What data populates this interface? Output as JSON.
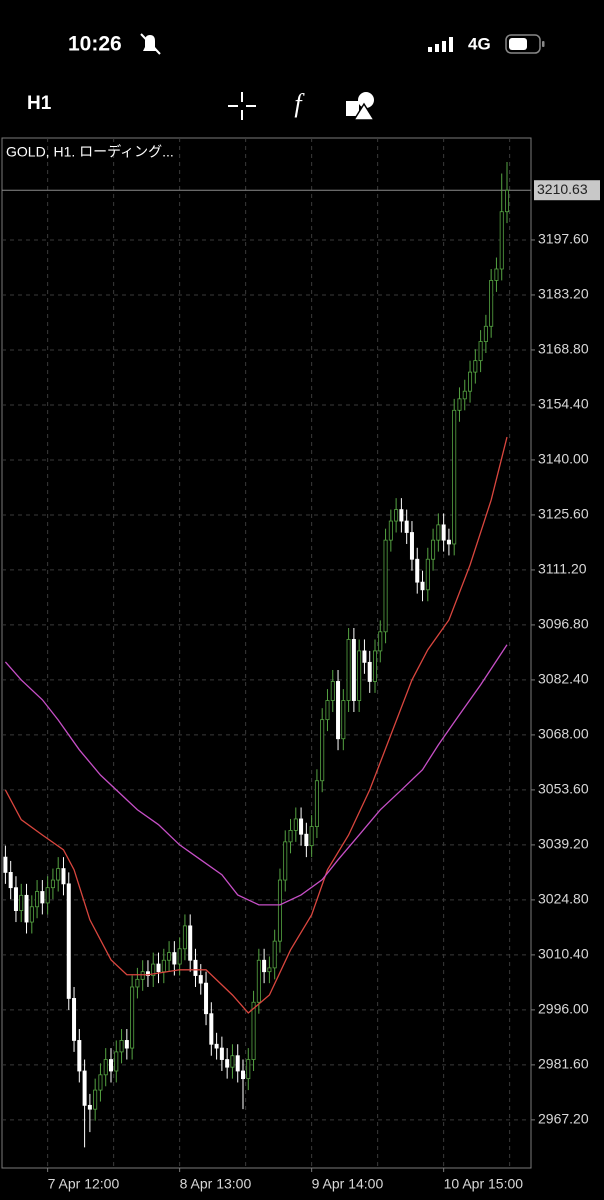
{
  "status_bar": {
    "time": "10:26",
    "network": "4G"
  },
  "toolbar": {
    "timeframe": "H1"
  },
  "chart_data": {
    "type": "candlestick",
    "title": "GOLD, H1. ローディング...",
    "categories": [
      null,
      null,
      null,
      null,
      null,
      null,
      null,
      null,
      "7 Apr 12:00",
      null,
      null,
      null,
      null,
      null,
      null,
      null,
      null,
      null,
      null,
      null,
      null,
      null,
      null,
      null,
      null,
      null,
      null,
      null,
      null,
      null,
      null,
      null,
      null,
      "8 Apr 13:00",
      null,
      null,
      null,
      null,
      null,
      null,
      null,
      null,
      null,
      null,
      null,
      null,
      null,
      null,
      null,
      null,
      null,
      null,
      null,
      null,
      null,
      null,
      null,
      null,
      "9 Apr 14:00",
      null,
      null,
      null,
      null,
      null,
      null,
      null,
      null,
      null,
      null,
      null,
      null,
      null,
      null,
      null,
      null,
      null,
      null,
      null,
      null,
      null,
      null,
      null,
      null,
      "10 Apr 15:00",
      null,
      null,
      null,
      null,
      null,
      null,
      null,
      null,
      null,
      null,
      null,
      null
    ],
    "open": [
      3036,
      3032,
      3028,
      3022,
      3026,
      3019,
      3023,
      3027,
      3024,
      3028,
      3030,
      3033,
      3029,
      2999,
      2988,
      2980,
      2971,
      2970,
      2975,
      2979,
      2983,
      2980,
      2985,
      2988,
      2986,
      3002,
      3004,
      3006,
      3005,
      3008,
      3006,
      3009,
      3011,
      3008,
      3012,
      3018,
      3009,
      3005,
      3003,
      2995,
      2987,
      2986,
      2983,
      2981,
      2984,
      2980,
      2978,
      2983,
      2998,
      3009,
      3006,
      3007,
      3014,
      3030,
      3040,
      3043,
      3046,
      3042,
      3039,
      3044,
      3056,
      3072,
      3077,
      3082,
      3067,
      3077,
      3093,
      3077,
      3090,
      3087,
      3082,
      3090,
      3095,
      3119,
      3124,
      3127,
      3124,
      3121,
      3114,
      3108,
      3106,
      3114,
      3119,
      3123,
      3119,
      3118,
      3153,
      3156,
      3158,
      3163,
      3166,
      3171,
      3175,
      3187,
      3190,
      3205
    ],
    "high": [
      3039,
      3035,
      3031,
      3029,
      3029,
      3026,
      3030,
      3030,
      3031,
      3033,
      3036,
      3036,
      3032,
      3002,
      2991,
      2983,
      2974,
      2978,
      2982,
      2986,
      2986,
      2988,
      2991,
      2991,
      3005,
      3007,
      3009,
      3009,
      3011,
      3011,
      3012,
      3014,
      3014,
      3015,
      3021,
      3021,
      3012,
      3008,
      3006,
      2998,
      2990,
      2989,
      2986,
      2987,
      2987,
      2983,
      2986,
      3001,
      3012,
      3012,
      3010,
      3017,
      3033,
      3043,
      3046,
      3049,
      3049,
      3045,
      3047,
      3059,
      3075,
      3080,
      3085,
      3085,
      3080,
      3096,
      3096,
      3093,
      3093,
      3090,
      3093,
      3098,
      3122,
      3127,
      3130,
      3130,
      3127,
      3124,
      3117,
      3111,
      3117,
      3122,
      3126,
      3126,
      3122,
      3156,
      3159,
      3161,
      3166,
      3169,
      3174,
      3178,
      3190,
      3193,
      3215,
      3218
    ],
    "low": [
      3029,
      3025,
      3019,
      3019,
      3016,
      3016,
      3020,
      3021,
      3021,
      3025,
      3027,
      3026,
      2996,
      2985,
      2977,
      2960,
      2964,
      2967,
      2972,
      2976,
      2977,
      2977,
      2982,
      2983,
      2983,
      2999,
      3001,
      3002,
      3002,
      3003,
      3003,
      3006,
      3005,
      3005,
      3009,
      3006,
      3002,
      3000,
      2992,
      2984,
      2983,
      2980,
      2978,
      2978,
      2977,
      2970,
      2975,
      2980,
      2995,
      3003,
      3003,
      3004,
      3011,
      3027,
      3037,
      3040,
      3039,
      3036,
      3036,
      3041,
      3053,
      3069,
      3074,
      3064,
      3064,
      3074,
      3074,
      3074,
      3084,
      3079,
      3079,
      3087,
      3092,
      3116,
      3121,
      3121,
      3118,
      3111,
      3105,
      3103,
      3103,
      3111,
      3116,
      3116,
      3115,
      3115,
      3150,
      3153,
      3155,
      3160,
      3163,
      3168,
      3172,
      3184,
      3187,
      3202
    ],
    "close": [
      3032,
      3028,
      3022,
      3026,
      3019,
      3023,
      3027,
      3024,
      3028,
      3030,
      3033,
      3029,
      2999,
      2988,
      2980,
      2971,
      2970,
      2975,
      2979,
      2983,
      2980,
      2985,
      2988,
      2986,
      3002,
      3004,
      3006,
      3005,
      3008,
      3006,
      3009,
      3011,
      3008,
      3012,
      3018,
      3009,
      3005,
      3003,
      2995,
      2987,
      2986,
      2983,
      2981,
      2984,
      2980,
      2978,
      2983,
      2998,
      3009,
      3006,
      3007,
      3014,
      3030,
      3040,
      3043,
      3046,
      3042,
      3039,
      3044,
      3056,
      3072,
      3077,
      3082,
      3067,
      3077,
      3093,
      3077,
      3090,
      3087,
      3082,
      3090,
      3095,
      3119,
      3124,
      3127,
      3124,
      3121,
      3114,
      3108,
      3106,
      3114,
      3119,
      3123,
      3119,
      3118,
      3153,
      3156,
      3158,
      3163,
      3166,
      3171,
      3175,
      3187,
      3190,
      3205,
      3210.63
    ],
    "up_color": "#56a443",
    "down_color": "#ffffff",
    "lines": [
      {
        "color": "#d9463e",
        "x": [
          0,
          3,
          7,
          11,
          13,
          16,
          20,
          23,
          27,
          33,
          38,
          43,
          46,
          50,
          54,
          58,
          61,
          65,
          69,
          73,
          77,
          80,
          84,
          88,
          92,
          95
        ],
        "values": [
          3053.6,
          3045.8,
          3041.8,
          3037.9,
          3032.7,
          3019.6,
          3009.1,
          3005.2,
          3005.2,
          3006.5,
          3006.5,
          2999.9,
          2995.2,
          2999.9,
          3011.7,
          3020.9,
          3032.7,
          3041.8,
          3053.6,
          3068.0,
          3082.4,
          3090.3,
          3098.1,
          3112.5,
          3129.5,
          3146.0
        ]
      },
      {
        "color": "#c64fc6",
        "x": [
          0,
          3,
          7,
          10,
          14,
          18,
          22,
          25,
          29,
          33,
          37,
          41,
          44,
          48,
          52,
          56,
          60,
          63,
          67,
          71,
          75,
          79,
          82,
          86,
          90,
          95
        ],
        "values": [
          3087.1,
          3082.4,
          3077.2,
          3071.9,
          3064.1,
          3057.5,
          3052.3,
          3048.4,
          3044.5,
          3039.2,
          3035.3,
          3031.4,
          3026.1,
          3023.5,
          3023.5,
          3026.1,
          3030.1,
          3035.3,
          3041.8,
          3048.4,
          3053.6,
          3058.9,
          3065.4,
          3073.3,
          3081.1,
          3091.6
        ]
      }
    ],
    "current_price": 3210.63,
    "ylim": [
      2954.6,
      3224.3
    ],
    "yticks": [
      {
        "value": 3197.6,
        "label": "3197.60"
      },
      {
        "value": 3183.2,
        "label": "3183.20"
      },
      {
        "value": 3168.8,
        "label": "3168.80"
      },
      {
        "value": 3154.4,
        "label": "3154.40"
      },
      {
        "value": 3140,
        "label": "3140.00"
      },
      {
        "value": 3125.6,
        "label": "3125.60"
      },
      {
        "value": 3111.2,
        "label": "3111.20"
      },
      {
        "value": 3096.8,
        "label": "3096.80"
      },
      {
        "value": 3082.4,
        "label": "3082.40"
      },
      {
        "value": 3068,
        "label": "3068.00"
      },
      {
        "value": 3053.6,
        "label": "3053.60"
      },
      {
        "value": 3039.2,
        "label": "3039.20"
      },
      {
        "value": 3024.8,
        "label": "3024.80"
      },
      {
        "value": 3010.4,
        "label": "3010.40"
      },
      {
        "value": 2996,
        "label": "2996.00"
      },
      {
        "value": 2981.6,
        "label": "2981.60"
      },
      {
        "value": 2967.2,
        "label": "2967.20"
      }
    ],
    "grid": true
  }
}
